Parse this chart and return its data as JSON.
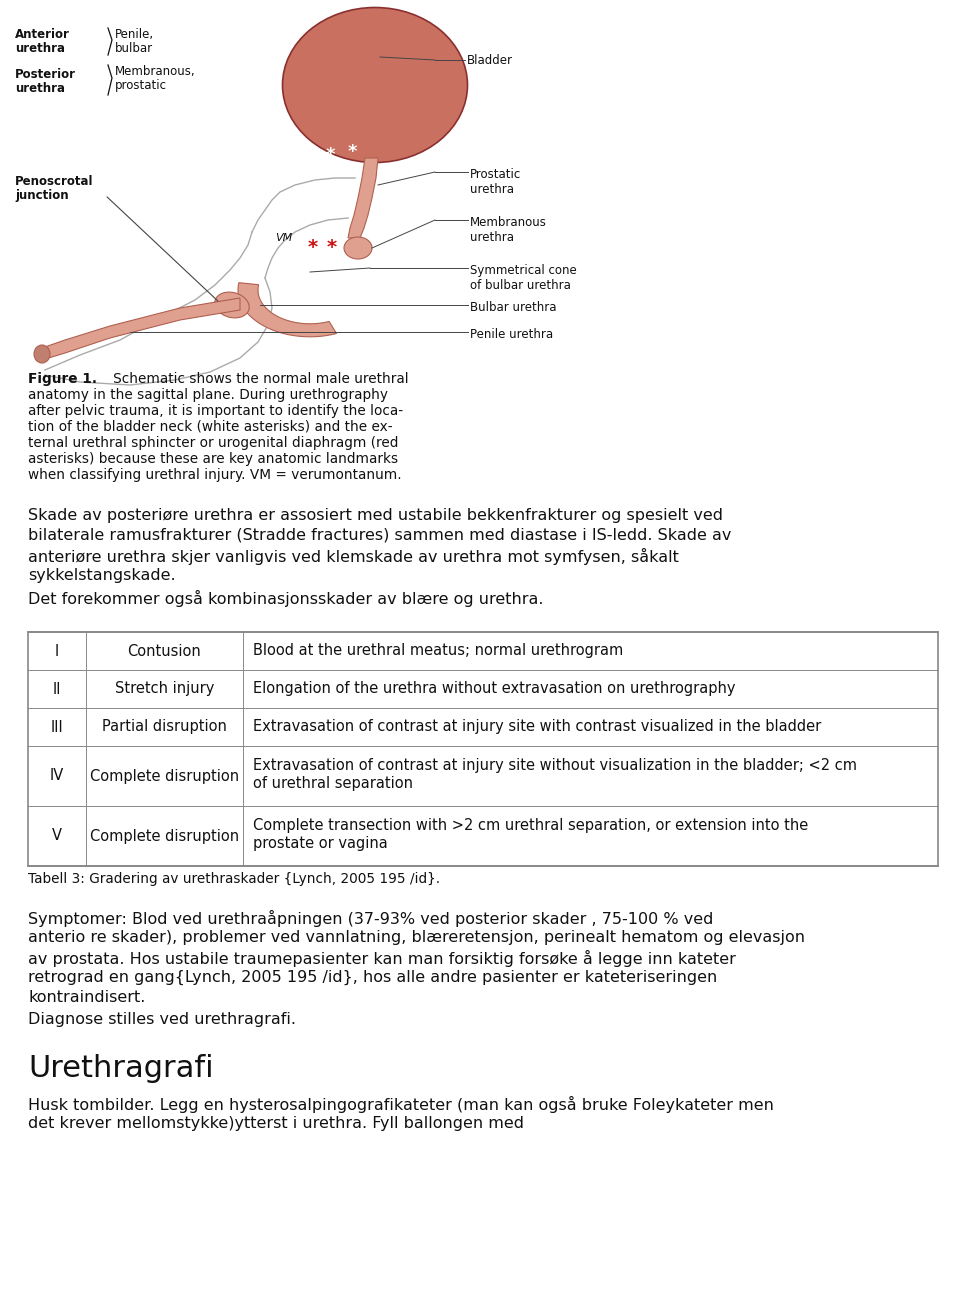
{
  "bg_color": "#ffffff",
  "fig_width": 9.6,
  "fig_height": 13.04,
  "figure_caption_bold": "Figure 1.",
  "figure_caption_rest": "   Schematic shows the normal male urethral\nanatomy in the sagittal plane. During urethrography\nafter pelvic trauma, it is important to identify the loca-\ntion of the bladder neck (white asterisks) and the ex-\nternal urethral sphincter or urogenital diaphragm (red\nasterisks) because these are key anatomic landmarks\nwhen classifying urethral injury. VM = verumontanum.",
  "paragraph1_line1": "Skade av posteriøre urethra er assosiert med ustabile bekkenfrakturer og spesielt ved",
  "paragraph1_line2": "bilaterale ramusfrakturer (Stradde fractures) sammen med diastase i IS-ledd. Skade av",
  "paragraph1_line3": "anteriøre urethra skjer vanligvis ved klemskade av urethra mot symfysen, såkalt",
  "paragraph1_line4": "sykkelstangskade.",
  "paragraph2": "Det forekommer også kombinasjonsskader av blære og urethra.",
  "table_caption": "Tabell 3: Gradering av urethraskader {Lynch, 2005 195 /id}.",
  "table_rows": [
    [
      "I",
      "Contusion",
      "Blood at the urethral meatus; normal urethrogram"
    ],
    [
      "II",
      "Stretch injury",
      "Elongation of the urethra without extravasation on urethrography"
    ],
    [
      "III",
      "Partial disruption",
      "Extravasation of contrast at injury site with contrast visualized in the bladder"
    ],
    [
      "IV",
      "Complete disruption",
      "Extravasation of contrast at injury site without visualization in the bladder; <2 cm\nof urethral separation"
    ],
    [
      "V",
      "Complete disruption",
      "Complete transection with >2 cm urethral separation, or extension into the\nprostate or vagina"
    ]
  ],
  "paragraph3": "Symptomer: Blod ved urethraåpningen (37-93% ved posterior skader , 75-100 % ved\nanterio re skader), problemer ved vannlatning, blæreretensjon, perinealt hematom og elevasjon\nav prostata. Hos ustabile traumepasienter kan man forsiktig forsøke å legge inn kateter\nretrograd en gang{Lynch, 2005 195 /id}, hos alle andre pasienter er kateteriseringen\nkontraindisert.",
  "paragraph4": "Diagnose stilles ved urethragrafi.",
  "heading": "Urethragrafi",
  "paragraph5": "Husk tombilder. Legg en hysterosalpingografikateter (man kan også bruke Foleykateter men\ndet krever mellomstykke)ytterst i urethra. Fyll ballongen med",
  "bladder_color": "#c97060",
  "bladder_edge": "#8a3030",
  "urethra_fill": "#dfa090",
  "urethra_edge": "#b06050",
  "body_line_color": "#aaaaaa",
  "label_line_color": "#444444",
  "text_color": "#111111",
  "table_border_color": "#888888",
  "table_fontsize": 10.5,
  "body_fontsize": 11.5,
  "caption_fontsize": 9.8,
  "heading_fontsize": 22.0,
  "label_fontsize": 8.5
}
